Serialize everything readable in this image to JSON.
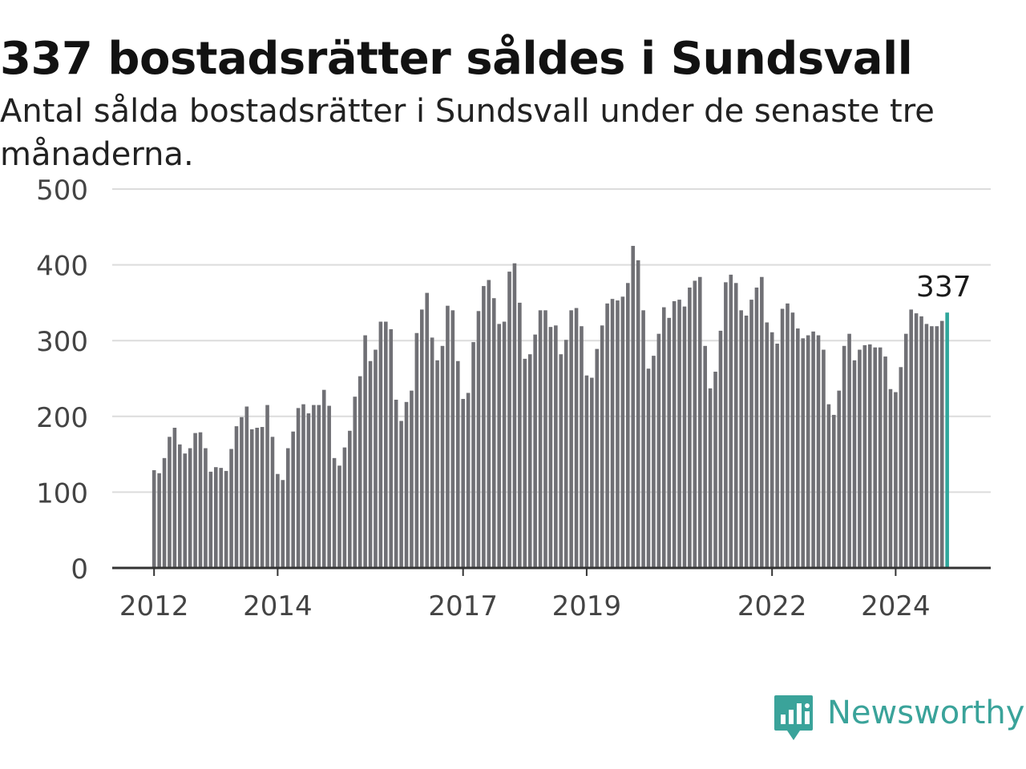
{
  "header": {
    "title": "337 bostadsrätter såldes i Sundsvall",
    "subtitle": "Antal sålda bostadsrätter i Sundsvall under de senaste tre månaderna."
  },
  "brand": {
    "name": "Newsworthy",
    "icon": "newsworthy-logo-icon",
    "color": "#3aa39a"
  },
  "chart_data": {
    "type": "bar",
    "xlabel": "",
    "ylabel": "",
    "ylim": [
      0,
      500
    ],
    "yticks": [
      0,
      100,
      200,
      300,
      400,
      500
    ],
    "xticks": [
      {
        "label": "2012",
        "index": 0
      },
      {
        "label": "2014",
        "index": 24
      },
      {
        "label": "2017",
        "index": 60
      },
      {
        "label": "2019",
        "index": 84
      },
      {
        "label": "2022",
        "index": 120
      },
      {
        "label": "2024",
        "index": 144
      }
    ],
    "grid": true,
    "bar_color": "#707075",
    "highlight_color": "#2fa69b",
    "highlight_index": 154,
    "highlight_label": "337",
    "values": [
      129,
      125,
      145,
      173,
      185,
      163,
      151,
      158,
      178,
      179,
      158,
      127,
      133,
      132,
      128,
      157,
      187,
      199,
      213,
      183,
      185,
      186,
      215,
      173,
      124,
      116,
      158,
      180,
      211,
      216,
      204,
      215,
      215,
      235,
      214,
      145,
      135,
      159,
      181,
      226,
      253,
      307,
      273,
      288,
      325,
      325,
      315,
      222,
      194,
      219,
      234,
      310,
      341,
      363,
      304,
      274,
      293,
      346,
      340,
      273,
      223,
      231,
      298,
      339,
      372,
      380,
      356,
      322,
      325,
      391,
      402,
      350,
      276,
      282,
      308,
      340,
      340,
      318,
      320,
      282,
      301,
      340,
      343,
      319,
      254,
      251,
      289,
      320,
      349,
      355,
      353,
      358,
      376,
      425,
      406,
      340,
      263,
      280,
      309,
      344,
      330,
      352,
      354,
      345,
      370,
      379,
      384,
      293,
      237,
      259,
      313,
      377,
      387,
      376,
      340,
      333,
      354,
      370,
      384,
      324,
      311,
      296,
      342,
      349,
      337,
      316,
      303,
      307,
      312,
      307,
      288,
      216,
      202,
      234,
      293,
      309,
      274,
      288,
      294,
      295,
      291,
      291,
      279,
      236,
      232,
      265,
      309,
      341,
      336,
      332,
      322,
      319,
      319,
      326,
      337
    ]
  }
}
